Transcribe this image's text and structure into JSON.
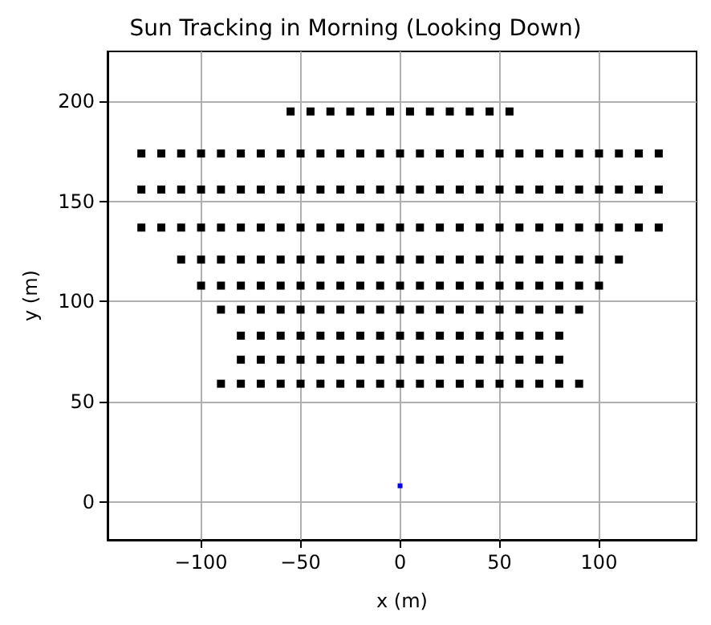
{
  "chart_data": {
    "type": "scatter",
    "title": "Sun Tracking in Morning (Looking Down)",
    "xlabel": "x (m)",
    "ylabel": "y (m)",
    "xlim": [
      -147,
      149
    ],
    "ylim": [
      -19,
      225
    ],
    "xticks": [
      -100,
      -50,
      0,
      50,
      100
    ],
    "yticks": [
      0,
      50,
      100,
      150,
      200
    ],
    "grid": true,
    "marker": "square",
    "series": [
      {
        "color": "#000000",
        "x": [
          -55,
          -45,
          -35,
          -25,
          -15,
          -5,
          5,
          15,
          25,
          35,
          45,
          55
        ],
        "values": [
          195,
          195,
          195,
          195,
          195,
          195,
          195,
          195,
          195,
          195,
          195,
          195
        ]
      },
      {
        "color": "#000000",
        "x": [
          -130,
          -120,
          -110,
          -100,
          -90,
          -80,
          -70,
          -60,
          -50,
          -40,
          -30,
          -20,
          -10,
          0,
          10,
          20,
          30,
          40,
          50,
          60,
          70,
          80,
          90,
          100,
          110,
          120,
          130
        ],
        "values": [
          174,
          174,
          174,
          174,
          174,
          174,
          174,
          174,
          174,
          174,
          174,
          174,
          174,
          174,
          174,
          174,
          174,
          174,
          174,
          174,
          174,
          174,
          174,
          174,
          174,
          174,
          174
        ]
      },
      {
        "color": "#000000",
        "x": [
          -130,
          -120,
          -110,
          -100,
          -90,
          -80,
          -70,
          -60,
          -50,
          -40,
          -30,
          -20,
          -10,
          0,
          10,
          20,
          30,
          40,
          50,
          60,
          70,
          80,
          90,
          100,
          110,
          120,
          130
        ],
        "values": [
          156,
          156,
          156,
          156,
          156,
          156,
          156,
          156,
          156,
          156,
          156,
          156,
          156,
          156,
          156,
          156,
          156,
          156,
          156,
          156,
          156,
          156,
          156,
          156,
          156,
          156,
          156
        ]
      },
      {
        "color": "#000000",
        "x": [
          -130,
          -120,
          -110,
          -100,
          -90,
          -80,
          -70,
          -60,
          -50,
          -40,
          -30,
          -20,
          -10,
          0,
          10,
          20,
          30,
          40,
          50,
          60,
          70,
          80,
          90,
          100,
          110,
          120,
          130
        ],
        "values": [
          137,
          137,
          137,
          137,
          137,
          137,
          137,
          137,
          137,
          137,
          137,
          137,
          137,
          137,
          137,
          137,
          137,
          137,
          137,
          137,
          137,
          137,
          137,
          137,
          137,
          137,
          137
        ]
      },
      {
        "color": "#000000",
        "x": [
          -110,
          -100,
          -90,
          -80,
          -70,
          -60,
          -50,
          -40,
          -30,
          -20,
          -10,
          0,
          10,
          20,
          30,
          40,
          50,
          60,
          70,
          80,
          90,
          100,
          110
        ],
        "values": [
          121,
          121,
          121,
          121,
          121,
          121,
          121,
          121,
          121,
          121,
          121,
          121,
          121,
          121,
          121,
          121,
          121,
          121,
          121,
          121,
          121,
          121,
          121
        ]
      },
      {
        "color": "#000000",
        "x": [
          -100,
          -90,
          -80,
          -70,
          -60,
          -50,
          -40,
          -30,
          -20,
          -10,
          0,
          10,
          20,
          30,
          40,
          50,
          60,
          70,
          80,
          90,
          100
        ],
        "values": [
          108,
          108,
          108,
          108,
          108,
          108,
          108,
          108,
          108,
          108,
          108,
          108,
          108,
          108,
          108,
          108,
          108,
          108,
          108,
          108,
          108
        ]
      },
      {
        "color": "#000000",
        "x": [
          -90,
          -80,
          -70,
          -60,
          -50,
          -40,
          -30,
          -20,
          -10,
          0,
          10,
          20,
          30,
          40,
          50,
          60,
          70,
          80,
          90
        ],
        "values": [
          96,
          96,
          96,
          96,
          96,
          96,
          96,
          96,
          96,
          96,
          96,
          96,
          96,
          96,
          96,
          96,
          96,
          96,
          96
        ]
      },
      {
        "color": "#000000",
        "x": [
          -80,
          -70,
          -60,
          -50,
          -40,
          -30,
          -20,
          -10,
          0,
          10,
          20,
          30,
          40,
          50,
          60,
          70,
          80
        ],
        "values": [
          83,
          83,
          83,
          83,
          83,
          83,
          83,
          83,
          83,
          83,
          83,
          83,
          83,
          83,
          83,
          83,
          83
        ]
      },
      {
        "color": "#000000",
        "x": [
          -80,
          -70,
          -60,
          -50,
          -40,
          -30,
          -20,
          -10,
          0,
          10,
          20,
          30,
          40,
          50,
          60,
          70,
          80
        ],
        "values": [
          71,
          71,
          71,
          71,
          71,
          71,
          71,
          71,
          71,
          71,
          71,
          71,
          71,
          71,
          71,
          71,
          71
        ]
      },
      {
        "color": "#000000",
        "x": [
          -90,
          -80,
          -70,
          -60,
          -50,
          -40,
          -30,
          -20,
          -10,
          0,
          10,
          20,
          30,
          40,
          50,
          60,
          70,
          80,
          90
        ],
        "values": [
          59,
          59,
          59,
          59,
          59,
          59,
          59,
          59,
          59,
          59,
          59,
          59,
          59,
          59,
          59,
          59,
          59,
          59,
          59
        ]
      },
      {
        "color": "#0000ff",
        "x": [
          0
        ],
        "values": [
          8
        ]
      }
    ]
  }
}
